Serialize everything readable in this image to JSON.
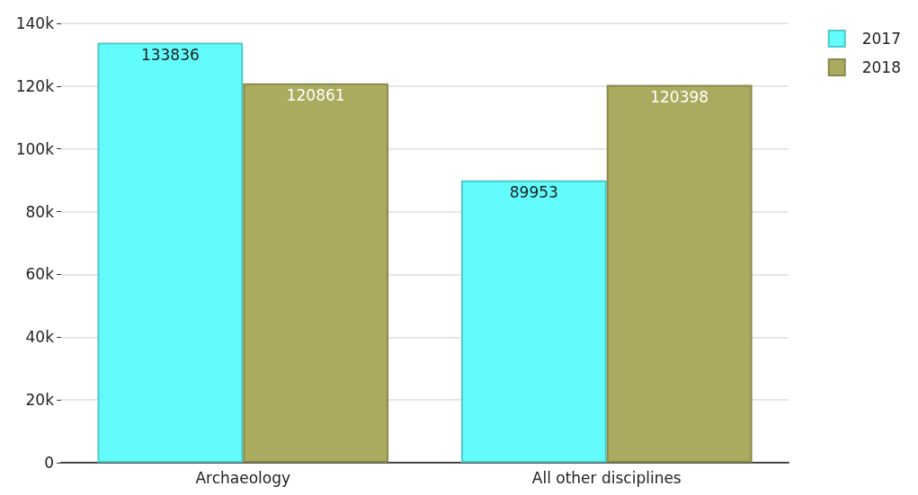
{
  "chart_data": {
    "type": "bar",
    "categories": [
      "Archaeology",
      "All other disciplines"
    ],
    "series": [
      {
        "name": "2017",
        "color": "#62fcfc",
        "values": [
          133836,
          89953
        ]
      },
      {
        "name": "2018",
        "color": "#abab5f",
        "values": [
          120861,
          120398
        ]
      }
    ],
    "ylim": [
      0,
      140000
    ],
    "yticks": [
      0,
      {
        "value": 20000,
        "label": "20k"
      },
      {
        "value": 40000,
        "label": "40k"
      },
      {
        "value": 60000,
        "label": "60k"
      },
      {
        "value": 80000,
        "label": "80k"
      },
      {
        "value": 100000,
        "label": "100k"
      },
      {
        "value": 120000,
        "label": "120k"
      },
      {
        "value": 140000,
        "label": "140k"
      }
    ],
    "grid": "y",
    "legend": "top right",
    "data_labels": true
  }
}
